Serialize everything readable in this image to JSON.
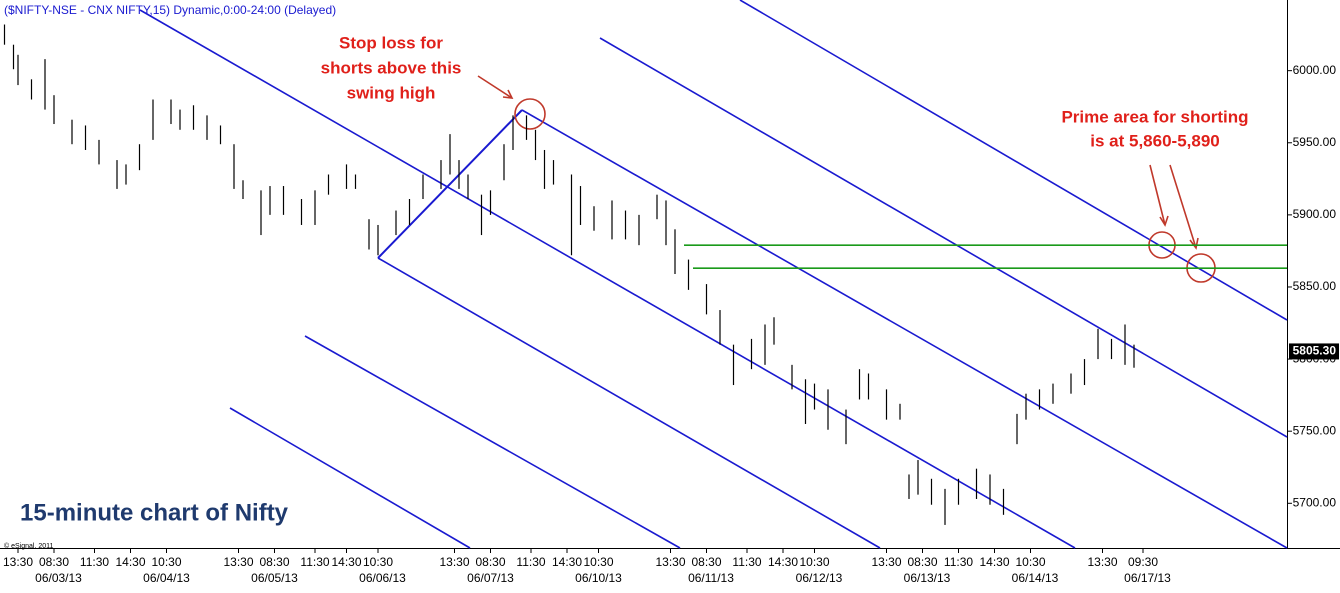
{
  "chart_data": {
    "type": "hilo",
    "title": "($NIFTY-NSE - CNX NIFTY,15) Dynamic,0:00-24:00 (Delayed)",
    "caption": "15-minute chart of Nifty",
    "credit": "© eSignal, 2011",
    "annotations": [
      {
        "lines": [
          "Stop loss for",
          "shorts above this",
          "swing high"
        ]
      },
      {
        "lines": [
          "Prime area for shorting",
          "is at 5,860-5,890"
        ]
      }
    ],
    "color": "#000000",
    "line_color": "#1a1ad0",
    "level_color": "#1a9a1a",
    "ylim": [
      5669,
      6049
    ],
    "yticks": [
      {
        "value": 5700,
        "label": "5700.00"
      },
      {
        "value": 5750,
        "label": "5750.00"
      },
      {
        "value": 5800,
        "label": "5800.00"
      },
      {
        "value": 5850,
        "label": "5850.00"
      },
      {
        "value": 5900,
        "label": "5900.00"
      },
      {
        "value": 5950,
        "label": "5950.00"
      },
      {
        "value": 6000,
        "label": "6000.00"
      }
    ],
    "last_price": {
      "value": 5805.3,
      "label": "5805.30"
    },
    "xlim": [
      0,
      286
    ],
    "xticks": [
      {
        "value": 4,
        "label": "13:30"
      },
      {
        "value": 12,
        "label": "08:30"
      },
      {
        "value": 21,
        "label": "11:30"
      },
      {
        "value": 29,
        "label": "14:30"
      },
      {
        "value": 37,
        "label": "10:30"
      },
      {
        "value": 53,
        "label": "13:30"
      },
      {
        "value": 61,
        "label": "08:30"
      },
      {
        "value": 70,
        "label": "11:30"
      },
      {
        "value": 77,
        "label": "14:30"
      },
      {
        "value": 84,
        "label": "10:30"
      },
      {
        "value": 101,
        "label": "13:30"
      },
      {
        "value": 109,
        "label": "08:30"
      },
      {
        "value": 118,
        "label": "11:30"
      },
      {
        "value": 126,
        "label": "14:30"
      },
      {
        "value": 133,
        "label": "10:30"
      },
      {
        "value": 149,
        "label": "13:30"
      },
      {
        "value": 157,
        "label": "08:30"
      },
      {
        "value": 166,
        "label": "11:30"
      },
      {
        "value": 174,
        "label": "14:30"
      },
      {
        "value": 181,
        "label": "10:30"
      },
      {
        "value": 197,
        "label": "13:30"
      },
      {
        "value": 205,
        "label": "08:30"
      },
      {
        "value": 213,
        "label": "11:30"
      },
      {
        "value": 221,
        "label": "14:30"
      },
      {
        "value": 229,
        "label": "10:30"
      },
      {
        "value": 245,
        "label": "13:30"
      },
      {
        "value": 254,
        "label": "09:30"
      }
    ],
    "date_ticks": [
      {
        "value": 13,
        "label": "06/03/13"
      },
      {
        "value": 37,
        "label": "06/04/13"
      },
      {
        "value": 61,
        "label": "06/05/13"
      },
      {
        "value": 85,
        "label": "06/06/13"
      },
      {
        "value": 109,
        "label": "06/07/13"
      },
      {
        "value": 133,
        "label": "06/10/13"
      },
      {
        "value": 158,
        "label": "06/11/13"
      },
      {
        "value": 182,
        "label": "06/12/13"
      },
      {
        "value": 206,
        "label": "06/13/13"
      },
      {
        "value": 230,
        "label": "06/14/13"
      },
      {
        "value": 255,
        "label": "06/17/13"
      }
    ],
    "levels": [
      {
        "value": 5879,
        "x_start": 152
      },
      {
        "value": 5863,
        "x_start": 154
      }
    ],
    "x": [
      1,
      3,
      4,
      7,
      10,
      12,
      16,
      19,
      22,
      26,
      28,
      31,
      34,
      38,
      40,
      43,
      46,
      49,
      52,
      54,
      58,
      60,
      63,
      67,
      70,
      73,
      77,
      79,
      82,
      84,
      88,
      91,
      94,
      98,
      100,
      102,
      104,
      107,
      109,
      112,
      114,
      117,
      119,
      121,
      123,
      127,
      129,
      132,
      136,
      139,
      142,
      146,
      148,
      150,
      153,
      157,
      160,
      163,
      167,
      170,
      172,
      176,
      179,
      181,
      184,
      188,
      191,
      193,
      197,
      200,
      202,
      204,
      207,
      210,
      213,
      217,
      220,
      223,
      226,
      228,
      231,
      234,
      238,
      241,
      244,
      247,
      250,
      252
    ],
    "high": [
      6032,
      6018,
      6011,
      5994,
      6008,
      5983,
      5966,
      5962,
      5952,
      5938,
      5935,
      5949,
      5980,
      5980,
      5973,
      5976,
      5969,
      5962,
      5949,
      5924,
      5917,
      5920,
      5920,
      5911,
      5917,
      5928,
      5935,
      5928,
      5897,
      5893,
      5903,
      5911,
      5928,
      5938,
      5956,
      5938,
      5928,
      5914,
      5917,
      5949,
      5969,
      5969,
      5959,
      5945,
      5938,
      5928,
      5920,
      5906,
      5910,
      5903,
      5900,
      5914,
      5910,
      5890,
      5869,
      5852,
      5834,
      5810,
      5814,
      5824,
      5829,
      5796,
      5786,
      5783,
      5779,
      5765,
      5793,
      5790,
      5779,
      5769,
      5720,
      5730,
      5717,
      5710,
      5717,
      5724,
      5720,
      5710,
      5762,
      5776,
      5779,
      5783,
      5790,
      5800,
      5821,
      5814,
      5824,
      5810
    ],
    "low": [
      6018,
      6001,
      5990,
      5980,
      5973,
      5963,
      5949,
      5945,
      5935,
      5918,
      5921,
      5931,
      5952,
      5963,
      5959,
      5959,
      5952,
      5949,
      5918,
      5911,
      5886,
      5900,
      5900,
      5893,
      5893,
      5914,
      5918,
      5918,
      5876,
      5872,
      5886,
      5893,
      5911,
      5918,
      5928,
      5918,
      5911,
      5886,
      5900,
      5924,
      5945,
      5952,
      5938,
      5918,
      5921,
      5872,
      5893,
      5889,
      5883,
      5883,
      5879,
      5897,
      5879,
      5859,
      5848,
      5831,
      5810,
      5782,
      5793,
      5796,
      5810,
      5779,
      5755,
      5765,
      5751,
      5741,
      5772,
      5772,
      5758,
      5758,
      5703,
      5706,
      5699,
      5685,
      5699,
      5703,
      5699,
      5692,
      5741,
      5758,
      5765,
      5769,
      5776,
      5782,
      5800,
      5800,
      5796,
      5794
    ]
  }
}
